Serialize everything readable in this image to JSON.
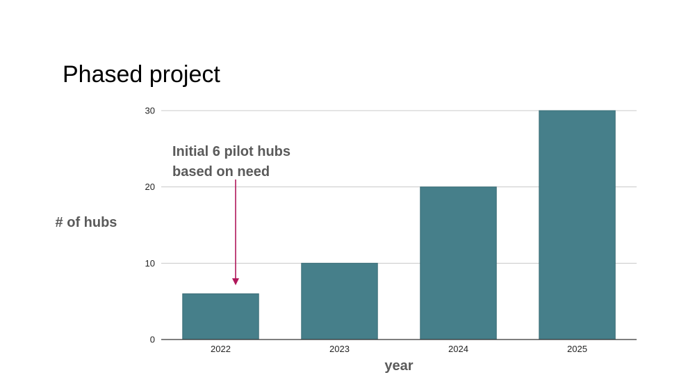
{
  "slide": {
    "title": "Phased project"
  },
  "chart_data": {
    "type": "bar",
    "categories": [
      "2022",
      "2023",
      "2024",
      "2025"
    ],
    "values": [
      6,
      10,
      20,
      30
    ],
    "xlabel": "year",
    "ylabel": "# of hubs",
    "ylim": [
      0,
      30
    ],
    "yticks": [
      0,
      10,
      20,
      30
    ],
    "grid": true,
    "bar_color": "#467f8a",
    "annotation": {
      "lines": [
        "Initial 6 pilot hubs",
        "based on need"
      ],
      "target_category": "2022",
      "arrow_color": "#b0175a"
    }
  }
}
